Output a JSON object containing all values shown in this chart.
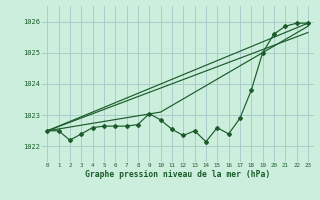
{
  "xlabel": "Graphe pression niveau de la mer (hPa)",
  "bg_color": "#cceedd",
  "grid_color": "#aacccc",
  "line_color": "#1a5c2a",
  "xlim": [
    -0.5,
    23.5
  ],
  "ylim": [
    1021.5,
    1026.5
  ],
  "yticks": [
    1022,
    1023,
    1024,
    1025,
    1026
  ],
  "xticks": [
    0,
    1,
    2,
    3,
    4,
    5,
    6,
    7,
    8,
    9,
    10,
    11,
    12,
    13,
    14,
    15,
    16,
    17,
    18,
    19,
    20,
    21,
    22,
    23
  ],
  "series1": [
    1022.5,
    1022.5,
    1022.2,
    1022.4,
    1022.6,
    1022.65,
    1022.65,
    1022.65,
    1022.7,
    1023.05,
    1022.85,
    1022.55,
    1022.35,
    1022.5,
    1022.15,
    1022.6,
    1022.4,
    1022.9,
    1023.8,
    1025.0,
    1025.6,
    1025.85,
    1025.95,
    1025.95
  ],
  "trend1_x": [
    0,
    23
  ],
  "trend1_y": [
    1022.5,
    1025.65
  ],
  "trend2_x": [
    0,
    23
  ],
  "trend2_y": [
    1022.5,
    1025.95
  ],
  "trend3_x": [
    0,
    10,
    23
  ],
  "trend3_y": [
    1022.5,
    1023.1,
    1025.85
  ]
}
